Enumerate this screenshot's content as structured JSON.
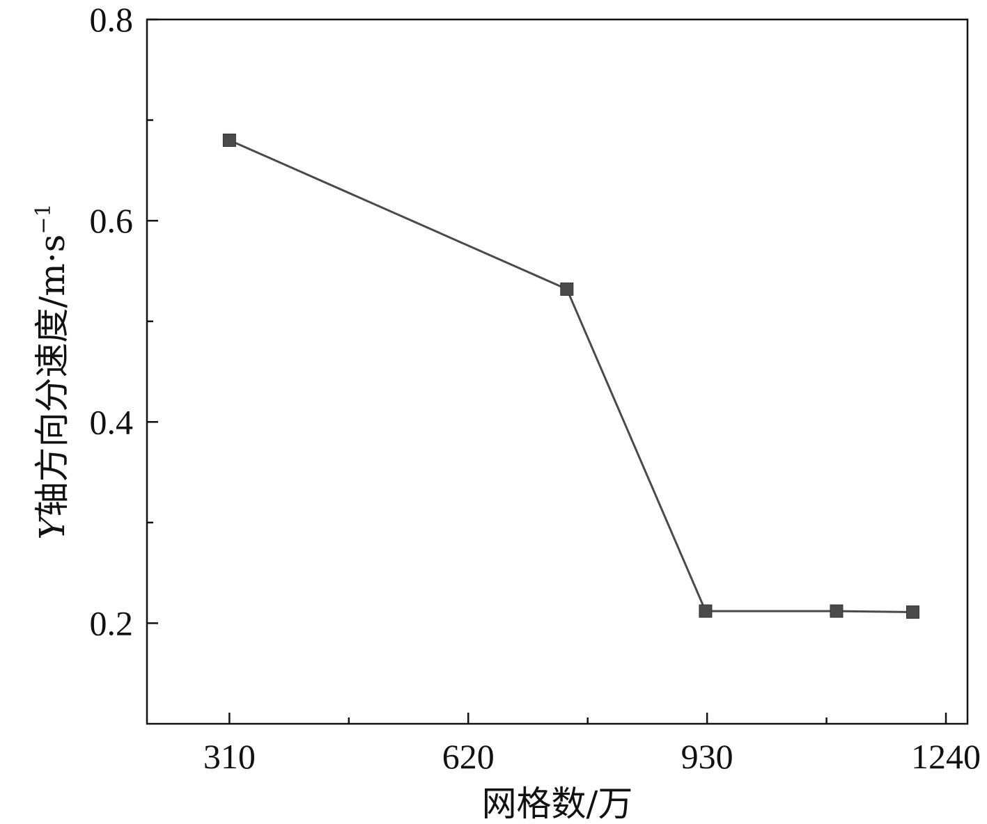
{
  "chart_data": {
    "type": "line",
    "title": "",
    "xlabel": "网格数/万",
    "ylabel": {
      "italic_prefix": "Y",
      "text": "轴方向分速度/m·s",
      "superscript": "−1"
    },
    "xlim": [
      203,
      1268
    ],
    "ylim": [
      0.1,
      0.8
    ],
    "x_ticks": [
      310,
      620,
      930,
      1240
    ],
    "x_tick_labels": [
      "310",
      "620",
      "930",
      "1240"
    ],
    "x_minor_ticks": [
      465,
      775,
      1085
    ],
    "y_ticks": [
      0.2,
      0.4,
      0.6,
      0.8
    ],
    "y_tick_labels": [
      "0.2",
      "0.4",
      "0.6",
      "0.8"
    ],
    "y_minor_ticks": [
      0.3,
      0.5,
      0.7
    ],
    "grid": false,
    "series": [
      {
        "marker": "square",
        "color": "#4a4a4a",
        "x": [
          310,
          748,
          928,
          1098,
          1197
        ],
        "y": [
          0.68,
          0.532,
          0.212,
          0.212,
          0.211
        ]
      }
    ]
  }
}
